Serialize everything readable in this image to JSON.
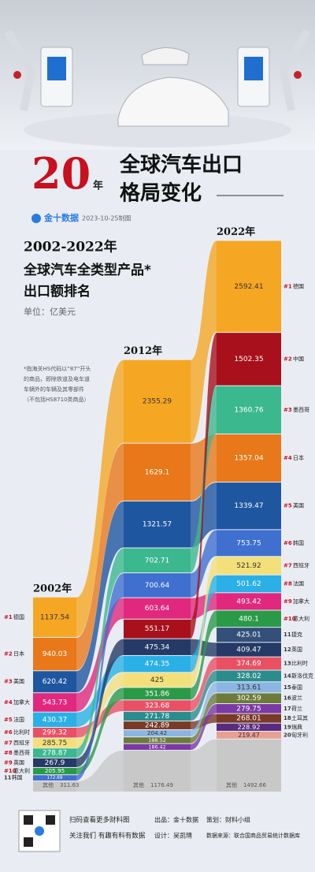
{
  "chart_data": {
    "type": "alluvial",
    "title_number": "20",
    "title_unit": "年",
    "title_line1": "全球汽车出口",
    "title_line2": "格局变化",
    "brand": "金十数据",
    "date": "2023-10-25制图",
    "subtitle_line1": "2002-2022年",
    "subtitle_line2": "全球汽车全类型产品*",
    "subtitle_line3": "出口额排名",
    "unit": "单位：亿美元",
    "note": [
      "*指海关HS代码以“87”开头",
      "的商品，即除铁道及电车道",
      "车辆外的车辆及其零部件",
      "（不包括HS8710类商品）"
    ],
    "columns": [
      {
        "year": "2002年",
        "segments": [
          {
            "rank": "#1",
            "name": "德国",
            "value": 1137.54,
            "color": "#f5a623"
          },
          {
            "rank": "#2",
            "name": "日本",
            "value": 940.03,
            "color": "#e8781a"
          },
          {
            "rank": "#3",
            "name": "美国",
            "value": 620.42,
            "color": "#1f56a0"
          },
          {
            "rank": "#4",
            "name": "加拿大",
            "value": 543.73,
            "color": "#e0287e"
          },
          {
            "rank": "#5",
            "name": "法国",
            "value": 430.37,
            "color": "#2ab0e6"
          },
          {
            "rank": "#6",
            "name": "比利时",
            "value": 299.32,
            "color": "#ea5064"
          },
          {
            "rank": "#7",
            "name": "西班牙",
            "value": 285.75,
            "color": "#f3e07a"
          },
          {
            "rank": "#8",
            "name": "墨西哥",
            "value": 278.87,
            "color": "#3cb88e"
          },
          {
            "rank": "#9",
            "name": "英国",
            "value": 267.9,
            "color": "#253a66"
          },
          {
            "rank": "#10",
            "name": "意大利",
            "value": 205.95,
            "color": "#2a9a48"
          },
          {
            "rank": "11",
            "name": "韩国",
            "value": 172.69,
            "color": "#3f6fcf"
          },
          {
            "name": "其他",
            "value": 311.63,
            "color": "#c8c8c8"
          }
        ]
      },
      {
        "year": "2012年",
        "segments": [
          {
            "value": 2355.29,
            "color": "#f5a623"
          },
          {
            "value": 1629.1,
            "color": "#e8781a"
          },
          {
            "value": 1321.57,
            "color": "#1f56a0"
          },
          {
            "value": 702.71,
            "color": "#3cb88e"
          },
          {
            "value": 700.64,
            "color": "#3f6fcf"
          },
          {
            "value": 603.64,
            "color": "#e0287e"
          },
          {
            "value": 551.17,
            "color": "#a8101c"
          },
          {
            "value": 475.34,
            "color": "#253a66"
          },
          {
            "value": 474.35,
            "color": "#2ab0e6"
          },
          {
            "value": 425,
            "color": "#f3e07a"
          },
          {
            "value": 351.86,
            "color": "#2a9a48"
          },
          {
            "value": 323.68,
            "color": "#ea5064"
          },
          {
            "value": 271.78,
            "color": "#2a8c8c"
          },
          {
            "value": 242.89,
            "color": "#7a3a28"
          },
          {
            "value": 204.42,
            "color": "#8cb6e2"
          },
          {
            "value": 188.52,
            "color": "#6d7b3a"
          },
          {
            "value": 186.42,
            "color": "#7a3aa2"
          },
          {
            "name": "其他",
            "value": 1176.49,
            "color": "#c8c8c8"
          }
        ]
      },
      {
        "year": "2022年",
        "segments": [
          {
            "rank": "#1",
            "name": "德国",
            "value": 2592.41,
            "color": "#f5a623"
          },
          {
            "rank": "#2",
            "name": "中国",
            "value": 1502.35,
            "color": "#a8101c"
          },
          {
            "rank": "#3",
            "name": "墨西哥",
            "value": 1360.76,
            "color": "#3cb88e"
          },
          {
            "rank": "#4",
            "name": "日本",
            "value": 1357.04,
            "color": "#e8781a"
          },
          {
            "rank": "#5",
            "name": "美国",
            "value": 1339.47,
            "color": "#1f56a0"
          },
          {
            "rank": "#6",
            "name": "韩国",
            "value": 753.75,
            "color": "#3f6fcf"
          },
          {
            "rank": "#7",
            "name": "西班牙",
            "value": 521.92,
            "color": "#f3e07a"
          },
          {
            "rank": "#8",
            "name": "法国",
            "value": 501.62,
            "color": "#2ab0e6"
          },
          {
            "rank": "#9",
            "name": "加拿大",
            "value": 493.42,
            "color": "#e0287e"
          },
          {
            "rank": "#10",
            "name": "意大利",
            "value": 480.1,
            "color": "#2a9a48"
          },
          {
            "rank": "11",
            "name": "捷克",
            "value": 425.01,
            "color": "#34507a"
          },
          {
            "rank": "12",
            "name": "英国",
            "value": 409.47,
            "color": "#253a66"
          },
          {
            "rank": "13",
            "name": "比利时",
            "value": 374.69,
            "color": "#ea5064"
          },
          {
            "rank": "14",
            "name": "斯洛伐克",
            "value": 328.02,
            "color": "#2a8c8c"
          },
          {
            "rank": "15",
            "name": "泰国",
            "value": 313.61,
            "color": "#8cb6e2"
          },
          {
            "rank": "16",
            "name": "波兰",
            "value": 302.59,
            "color": "#6d7b3a"
          },
          {
            "rank": "17",
            "name": "荷兰",
            "value": 279.75,
            "color": "#7a3aa2"
          },
          {
            "rank": "18",
            "name": "土耳其",
            "value": 268.01,
            "color": "#7a3a28"
          },
          {
            "rank": "19",
            "name": "瑞典",
            "value": 228.92,
            "color": "#5a2a80"
          },
          {
            "rank": "20",
            "name": "匈牙利",
            "value": 219.47,
            "color": "#e8a090"
          },
          {
            "name": "其他",
            "value": 1492.66,
            "color": "#c8c8c8"
          }
        ]
      }
    ],
    "footer": {
      "qr_line1": "扫码查看更多财料图",
      "qr_line2": "关注我们 有趣有料有数据",
      "producer": "出品：金十数据",
      "planner": "策划：财料小组",
      "designer": "设计：吴凯晴",
      "source": "数据来源：联合国商品贸易统计数据库"
    }
  }
}
